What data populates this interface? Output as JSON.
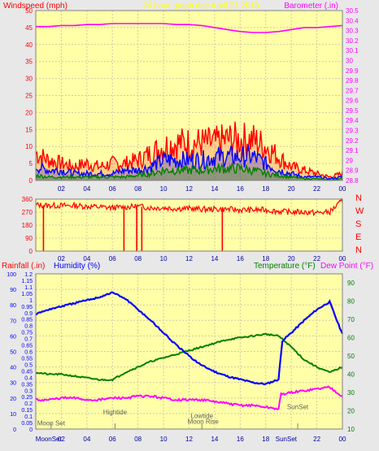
{
  "chart_data": [
    {
      "type": "line",
      "title": "24 hour graph dae   April 21 2018",
      "ylabel": "Windspeed (mph)",
      "y2label": "Barometer (.in)",
      "ylim": [
        0,
        50
      ],
      "y2lim": [
        28.8,
        30.5
      ],
      "yticks": [
        "0",
        "5",
        "10",
        "15",
        "20",
        "25",
        "30",
        "35",
        "40",
        "45",
        "50"
      ],
      "y2ticks": [
        "28.8",
        "28.9",
        "29",
        "29.1",
        "29.2",
        "29.3",
        "29.4",
        "29.5",
        "29.6",
        "29.7",
        "29.8",
        "29.9",
        "30",
        "30.1",
        "30.2",
        "30.3",
        "30.4",
        "30.5"
      ],
      "xticks": [
        "02",
        "04",
        "06",
        "08",
        "10",
        "12",
        "14",
        "16",
        "18",
        "20",
        "22",
        "00"
      ],
      "grid": true,
      "series": [
        {
          "key": "gust",
          "color": "#ff0000",
          "x": [
            0,
            1,
            2,
            3,
            4,
            5,
            6,
            7,
            8,
            9,
            10,
            11,
            12,
            13,
            14,
            15,
            16,
            17,
            18,
            19,
            20,
            21,
            22,
            23,
            24
          ],
          "values": [
            8,
            6,
            5,
            4,
            5,
            4,
            5,
            5,
            6,
            8,
            10,
            11,
            11,
            11,
            11,
            12,
            12,
            12,
            10,
            7,
            4,
            3,
            2,
            1,
            2
          ]
        },
        {
          "key": "avg",
          "color": "#0000ff",
          "x": [
            0,
            1,
            2,
            3,
            4,
            5,
            6,
            7,
            8,
            9,
            10,
            11,
            12,
            13,
            14,
            15,
            16,
            17,
            18,
            19,
            20,
            21,
            22,
            23,
            24
          ],
          "values": [
            4,
            3,
            3,
            2,
            2,
            2,
            2,
            3,
            3,
            4,
            6,
            6,
            6,
            6,
            7,
            7,
            7,
            7,
            5,
            3,
            2,
            1,
            1,
            0.5,
            1
          ]
        },
        {
          "key": "low",
          "color": "#008000",
          "x": [
            0,
            1,
            2,
            3,
            4,
            5,
            6,
            7,
            8,
            9,
            10,
            11,
            12,
            13,
            14,
            15,
            16,
            17,
            18,
            19,
            20,
            21,
            22,
            23,
            24
          ],
          "values": [
            1.5,
            1,
            1,
            1,
            1,
            1,
            1,
            1,
            1.5,
            2,
            3,
            3,
            3,
            3,
            3.5,
            3.5,
            3.5,
            3,
            2,
            1.5,
            1,
            0.5,
            0.5,
            0,
            0.5
          ]
        },
        {
          "key": "baro",
          "axis": "y2",
          "color": "#ff00ff",
          "x": [
            0,
            1,
            2,
            3,
            4,
            5,
            6,
            7,
            8,
            9,
            10,
            11,
            12,
            13,
            14,
            15,
            16,
            17,
            18,
            19,
            20,
            21,
            22,
            23,
            24
          ],
          "values": [
            30.34,
            30.34,
            30.35,
            30.35,
            30.36,
            30.36,
            30.37,
            30.37,
            30.37,
            30.37,
            30.37,
            30.36,
            30.36,
            30.35,
            30.33,
            30.31,
            30.29,
            30.28,
            30.28,
            30.29,
            30.31,
            30.33,
            30.33,
            30.34,
            30.35
          ]
        }
      ]
    },
    {
      "type": "line",
      "title": "",
      "ylim": [
        0,
        360
      ],
      "yticks": [
        "0",
        "90",
        "180",
        "270",
        "360"
      ],
      "y2ticks": [
        "N",
        "W",
        "S",
        "E",
        "N"
      ],
      "xticks": [
        "02",
        "04",
        "06",
        "08",
        "10",
        "12",
        "14",
        "16",
        "18",
        "20",
        "22",
        "00"
      ],
      "grid": true,
      "series": [
        {
          "key": "direction",
          "color": "#ff0000",
          "x": [
            0,
            1,
            2,
            3,
            4,
            5,
            6,
            7,
            8,
            9,
            10,
            11,
            12,
            13,
            14,
            15,
            16,
            17,
            18,
            19,
            20,
            21,
            22,
            23,
            24
          ],
          "values": [
            320,
            315,
            315,
            315,
            310,
            305,
            300,
            305,
            310,
            300,
            300,
            295,
            295,
            290,
            290,
            290,
            285,
            285,
            285,
            275,
            270,
            270,
            265,
            270,
            350
          ]
        },
        {
          "key": "dips",
          "color": "#ff0000",
          "x": [
            0.6,
            6.9,
            7.9,
            8.3,
            14.6
          ],
          "values": [
            0,
            0,
            0,
            0,
            0
          ]
        }
      ]
    },
    {
      "type": "line",
      "title": "",
      "ylabel": "Rainfall (.in)",
      "ylabel2": "Humidity (%)",
      "y2label": "Temperature (°F)",
      "y2label2": "Dew Point (°F)",
      "ylim_rain": [
        0,
        1.2
      ],
      "ylim_hum": [
        0,
        100
      ],
      "ylim_temp": [
        10,
        95
      ],
      "rain_ticks": [
        "0",
        "0.05",
        "0.1",
        "0.15",
        "0.2",
        "0.25",
        "0.3",
        "0.35",
        "0.4",
        "0.45",
        "0.5",
        "0.55",
        "0.6",
        "0.65",
        "0.7",
        "0.75",
        "0.8",
        "0.85",
        "0.9",
        "0.95",
        "1",
        "1.05",
        "1.1",
        "1.15",
        "1.2"
      ],
      "hum_ticks": [
        "0",
        "10",
        "20",
        "30",
        "40",
        "50",
        "60",
        "70",
        "80",
        "90",
        "100"
      ],
      "temp_ticks": [
        "10",
        "20",
        "30",
        "40",
        "50",
        "60",
        "70",
        "80",
        "90"
      ],
      "xticks": [
        "MoonSet",
        "02",
        "04",
        "06",
        "08",
        "10",
        "12",
        "14",
        "16",
        "18",
        "SunSet",
        "22",
        "00"
      ],
      "grid": true,
      "series": [
        {
          "key": "humidity",
          "axis": "hum",
          "color": "#0000ff",
          "x": [
            0,
            1,
            2,
            3,
            4,
            5,
            6,
            7,
            8,
            9,
            10,
            11,
            12,
            13,
            14,
            15,
            16,
            17,
            18,
            19,
            19.3,
            20,
            21,
            22,
            23,
            24
          ],
          "values": [
            74,
            77,
            79,
            81,
            83,
            85,
            88,
            84,
            77,
            70,
            62,
            54,
            47,
            41,
            37,
            34,
            32,
            30,
            29,
            32,
            57,
            62,
            70,
            77,
            82,
            61
          ]
        },
        {
          "key": "temperature",
          "axis": "temp",
          "color": "#008000",
          "x": [
            0,
            1,
            2,
            3,
            4,
            5,
            6,
            7,
            8,
            9,
            10,
            11,
            12,
            13,
            14,
            15,
            16,
            17,
            18,
            19,
            20,
            21,
            22,
            23,
            24
          ],
          "values": [
            41,
            40,
            40,
            39,
            38,
            37,
            37,
            41,
            44,
            47,
            49,
            51,
            53,
            55,
            57,
            59,
            60,
            61,
            62,
            61,
            55,
            48,
            44,
            41,
            44
          ]
        },
        {
          "key": "dewpoint",
          "axis": "temp",
          "color": "#ff00ff",
          "x": [
            0,
            1,
            2,
            3,
            4,
            5,
            6,
            7,
            8,
            9,
            10,
            11,
            12,
            13,
            14,
            15,
            16,
            17,
            18,
            19,
            19.2,
            20,
            21,
            22,
            23,
            24
          ],
          "values": [
            26,
            26,
            27,
            27,
            26,
            26,
            27,
            27,
            28,
            28,
            27,
            26,
            26,
            26,
            25,
            24,
            23,
            23,
            22,
            21,
            29,
            30,
            31,
            32,
            33,
            28
          ]
        }
      ],
      "annotations": [
        {
          "text": "Moon Set",
          "x": 1.2,
          "temp": 12
        },
        {
          "text": "Hightide",
          "x": 6.2,
          "temp": 18
        },
        {
          "text": "Lowtide",
          "x": 13.0,
          "temp": 16
        },
        {
          "text": "Moon Rise",
          "x": 13.1,
          "temp": 13
        },
        {
          "text": "SunSet",
          "x": 20.5,
          "temp": 21
        }
      ]
    }
  ]
}
